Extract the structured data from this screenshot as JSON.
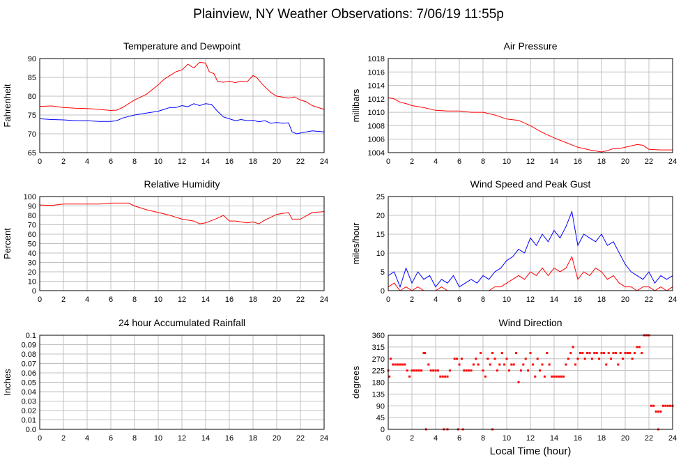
{
  "page_title": "Plainview, NY Weather Observations: 7/06/19 11:55p",
  "bottom_xlabel": "Local Time (hour)",
  "colors": {
    "red": "#ff0000",
    "blue": "#0000ff",
    "grid": "#c0c0c0",
    "axis": "#000000"
  },
  "chart_data": [
    {
      "id": "temp",
      "type": "line",
      "title": "Temperature and Dewpoint",
      "ylabel": "Fahrenheit",
      "xlim": [
        0,
        24
      ],
      "ylim": [
        65,
        90
      ],
      "xticks": [
        0,
        2,
        4,
        6,
        8,
        10,
        12,
        14,
        16,
        18,
        20,
        22,
        24
      ],
      "yticks": [
        65,
        70,
        75,
        80,
        85,
        90
      ],
      "grid": true,
      "series": [
        {
          "color": "#ff0000",
          "x": [
            0,
            1,
            2,
            3,
            4,
            5,
            6,
            6.5,
            7,
            8,
            9,
            10,
            10.5,
            11,
            11.5,
            12,
            12.5,
            13,
            13.5,
            14,
            14.3,
            14.7,
            15,
            15.5,
            16,
            16.5,
            17,
            17.5,
            18,
            18.3,
            18.7,
            19,
            19.5,
            20,
            21,
            21.5,
            22,
            22.5,
            23,
            24
          ],
          "y": [
            77.3,
            77.4,
            77,
            76.8,
            76.7,
            76.5,
            76.2,
            76.3,
            77,
            79,
            80.5,
            83,
            84.5,
            85.5,
            86.5,
            87,
            88.5,
            87.5,
            89,
            88.8,
            86.5,
            86,
            84,
            83.7,
            84,
            83.6,
            84,
            83.8,
            85.5,
            85,
            83.5,
            82.5,
            81,
            80,
            79.5,
            79.8,
            79,
            78.5,
            77.5,
            76.5
          ]
        },
        {
          "color": "#0000ff",
          "x": [
            0,
            1,
            2,
            3,
            4,
            5,
            6,
            6.5,
            7,
            8,
            9,
            10,
            10.5,
            11,
            11.5,
            12,
            12.5,
            13,
            13.5,
            14,
            14.5,
            15,
            15.5,
            16,
            16.5,
            17,
            17.5,
            18,
            18.5,
            19,
            19.5,
            20,
            20.5,
            21,
            21.3,
            21.7,
            22,
            22.5,
            23,
            24
          ],
          "y": [
            74,
            73.8,
            73.7,
            73.5,
            73.5,
            73.3,
            73.3,
            73.5,
            74.2,
            75,
            75.5,
            76,
            76.5,
            77,
            77,
            77.5,
            77.2,
            78,
            77.5,
            78,
            77.8,
            76,
            74.5,
            74,
            73.5,
            73.8,
            73.5,
            73.6,
            73.2,
            73.5,
            72.8,
            73,
            72.8,
            72.9,
            70.5,
            70,
            70.2,
            70.5,
            70.8,
            70.5
          ]
        }
      ]
    },
    {
      "id": "pressure",
      "type": "line",
      "title": "Air Pressure",
      "ylabel": "millibars",
      "xlim": [
        0,
        24
      ],
      "ylim": [
        1004,
        1018
      ],
      "xticks": [
        0,
        2,
        4,
        6,
        8,
        10,
        12,
        14,
        16,
        18,
        20,
        22,
        24
      ],
      "yticks": [
        1004,
        1006,
        1008,
        1010,
        1012,
        1014,
        1016,
        1018
      ],
      "grid": true,
      "series": [
        {
          "color": "#ff0000",
          "x": [
            0,
            0.5,
            1,
            1.5,
            2,
            3,
            4,
            5,
            6,
            7,
            8,
            9,
            10,
            11,
            12,
            13,
            14,
            15,
            16,
            17,
            18,
            18.5,
            19,
            19.5,
            20,
            20.5,
            21,
            21.5,
            22,
            23,
            24
          ],
          "y": [
            1012.2,
            1012,
            1011.5,
            1011.3,
            1011,
            1010.7,
            1010.3,
            1010.2,
            1010.2,
            1010,
            1010,
            1009.6,
            1009,
            1008.8,
            1008,
            1007,
            1006.2,
            1005.5,
            1004.8,
            1004.4,
            1004.1,
            1004.3,
            1004.6,
            1004.6,
            1004.8,
            1005,
            1005.2,
            1005.1,
            1004.5,
            1004.4,
            1004.4
          ]
        }
      ]
    },
    {
      "id": "humidity",
      "type": "line",
      "title": "Relative Humidity",
      "ylabel": "Percent",
      "xlim": [
        0,
        24
      ],
      "ylim": [
        0,
        100
      ],
      "xticks": [
        0,
        2,
        4,
        6,
        8,
        10,
        12,
        14,
        16,
        18,
        20,
        22,
        24
      ],
      "yticks": [
        0,
        10,
        20,
        30,
        40,
        50,
        60,
        70,
        80,
        90,
        100
      ],
      "grid": true,
      "series": [
        {
          "color": "#ff0000",
          "x": [
            0,
            1,
            2,
            3,
            4,
            5,
            6,
            7,
            7.5,
            8,
            9,
            10,
            11,
            12,
            13,
            13.5,
            14,
            15,
            15.5,
            16,
            16.5,
            17,
            17.5,
            18,
            18.5,
            19,
            20,
            21,
            21.3,
            22,
            23,
            24
          ],
          "y": [
            91,
            90.5,
            92,
            92,
            92,
            92,
            93,
            93,
            93,
            90,
            86,
            83,
            80,
            76,
            74,
            71,
            72,
            77,
            80,
            74,
            74,
            73,
            72,
            73,
            71,
            75,
            81,
            83,
            76,
            76,
            83,
            84
          ]
        }
      ]
    },
    {
      "id": "wind",
      "type": "line",
      "title": "Wind Speed and Peak Gust",
      "ylabel": "miles/hour",
      "xlim": [
        0,
        24
      ],
      "ylim": [
        0,
        25
      ],
      "xticks": [
        0,
        2,
        4,
        6,
        8,
        10,
        12,
        14,
        16,
        18,
        20,
        22,
        24
      ],
      "yticks": [
        0,
        5,
        10,
        15,
        20,
        25
      ],
      "grid": true,
      "series": [
        {
          "color": "#0000ff",
          "x": [
            0,
            0.5,
            1,
            1.5,
            2,
            2.5,
            3,
            3.5,
            4,
            4.5,
            5,
            5.5,
            6,
            6.5,
            7,
            7.5,
            8,
            8.5,
            9,
            9.5,
            10,
            10.5,
            11,
            11.5,
            12,
            12.5,
            13,
            13.5,
            14,
            14.5,
            15,
            15.5,
            16,
            16.5,
            17,
            17.5,
            18,
            18.5,
            19,
            19.5,
            20,
            20.5,
            21,
            21.5,
            22,
            22.5,
            23,
            23.5,
            24
          ],
          "y": [
            4,
            5,
            1,
            6,
            2,
            5,
            3,
            4,
            1,
            3,
            2,
            4,
            1,
            2,
            3,
            2,
            4,
            3,
            5,
            6,
            8,
            9,
            11,
            10,
            14,
            12,
            15,
            13,
            16,
            14,
            17,
            21,
            12,
            15,
            14,
            13,
            15,
            12,
            13,
            10,
            7,
            5,
            4,
            3,
            5,
            2,
            4,
            3,
            4
          ]
        },
        {
          "color": "#ff0000",
          "x": [
            0,
            0.5,
            1,
            1.5,
            2,
            2.5,
            3,
            3.5,
            4,
            4.5,
            5,
            5.5,
            6,
            6.5,
            7,
            7.5,
            8,
            8.5,
            9,
            9.5,
            10,
            10.5,
            11,
            11.5,
            12,
            12.5,
            13,
            13.5,
            14,
            14.5,
            15,
            15.5,
            16,
            16.5,
            17,
            17.5,
            18,
            18.5,
            19,
            19.5,
            20,
            20.5,
            21,
            21.5,
            22,
            22.5,
            23,
            23.5,
            24
          ],
          "y": [
            1,
            2,
            0,
            1,
            0,
            1,
            0,
            0,
            0,
            1,
            0,
            0,
            0,
            0,
            0,
            0,
            0,
            0,
            1,
            1,
            2,
            3,
            4,
            3,
            5,
            4,
            6,
            4,
            6,
            5,
            6,
            9,
            3,
            5,
            4,
            6,
            5,
            3,
            4,
            2,
            1,
            1,
            0,
            1,
            1,
            0,
            1,
            0,
            1
          ]
        }
      ]
    },
    {
      "id": "rain",
      "type": "line",
      "title": "24 hour Accumulated Rainfall",
      "ylabel": "Inches",
      "xlim": [
        0,
        24
      ],
      "ylim": [
        0,
        0.1
      ],
      "xticks": [
        0,
        2,
        4,
        6,
        8,
        10,
        12,
        14,
        16,
        18,
        20,
        22,
        24
      ],
      "yticks": [
        0.0,
        0.01,
        0.02,
        0.03,
        0.04,
        0.05,
        0.06,
        0.07,
        0.08,
        0.09,
        0.1
      ],
      "ytick_labels": [
        "0.0",
        "0.01",
        "0.02",
        "0.03",
        "0.04",
        "0.05",
        "0.06",
        "0.07",
        "0.08",
        "0.09",
        "0.1"
      ],
      "grid": true,
      "series": [
        {
          "color": "#ff0000",
          "x": [
            0,
            24
          ],
          "y": [
            0,
            0
          ]
        }
      ]
    },
    {
      "id": "direction",
      "type": "scatter",
      "title": "Wind Direction",
      "ylabel": "degrees",
      "xlabel": "Local Time (hour)",
      "xlim": [
        0,
        24
      ],
      "ylim": [
        0,
        360
      ],
      "xticks": [
        0,
        2,
        4,
        6,
        8,
        10,
        12,
        14,
        16,
        18,
        20,
        22,
        24
      ],
      "yticks": [
        0,
        45,
        90,
        135,
        180,
        225,
        270,
        315,
        360
      ],
      "grid": true,
      "series": [
        {
          "color": "#ff0000",
          "x": [
            0,
            0.1,
            0.2,
            0.4,
            0.6,
            0.8,
            1.0,
            1.2,
            1.4,
            1.6,
            1.8,
            2.0,
            2.2,
            2.4,
            2.6,
            2.8,
            3.0,
            3.1,
            3.2,
            3.4,
            3.6,
            3.8,
            4.0,
            4.2,
            4.4,
            4.6,
            4.8,
            5.0,
            5.2,
            5.6,
            5.8,
            6.0,
            6.2,
            6.4,
            6.6,
            6.8,
            7.0,
            7.2,
            7.4,
            7.6,
            7.8,
            8.0,
            8.2,
            8.4,
            8.6,
            8.8,
            9.0,
            9.2,
            9.4,
            9.6,
            9.8,
            10.0,
            10.2,
            10.4,
            10.6,
            10.8,
            11.0,
            11.2,
            11.4,
            11.6,
            11.8,
            12.0,
            12.2,
            12.4,
            12.6,
            12.8,
            13.0,
            13.2,
            13.4,
            13.6,
            13.8,
            14.0,
            14.2,
            14.4,
            14.6,
            14.8,
            15.0,
            15.2,
            15.4,
            15.6,
            15.8,
            16.0,
            16.2,
            16.4,
            16.6,
            16.8,
            17.0,
            17.2,
            17.4,
            17.6,
            17.8,
            18.0,
            18.2,
            18.4,
            18.6,
            18.8,
            19.0,
            19.2,
            19.4,
            19.6,
            19.8,
            20.0,
            20.2,
            20.4,
            20.6,
            20.8,
            21.0,
            21.2,
            21.4,
            21.6,
            21.8,
            22.0,
            22.2,
            22.4,
            22.6,
            22.8,
            23.0,
            23.2,
            23.4,
            23.6,
            23.8,
            24.0,
            4.7,
            5.0,
            5.9,
            6.3,
            8.8,
            22.8
          ],
          "y": [
            225,
            202,
            270,
            248,
            248,
            248,
            248,
            248,
            248,
            225,
            202,
            225,
            225,
            225,
            225,
            225,
            292,
            292,
            0,
            248,
            225,
            225,
            225,
            225,
            202,
            202,
            202,
            202,
            225,
            270,
            270,
            248,
            270,
            225,
            225,
            225,
            225,
            248,
            270,
            248,
            292,
            225,
            202,
            270,
            248,
            292,
            270,
            225,
            248,
            292,
            248,
            270,
            225,
            248,
            248,
            292,
            180,
            225,
            248,
            270,
            225,
            292,
            248,
            202,
            270,
            225,
            248,
            202,
            292,
            248,
            202,
            202,
            202,
            202,
            202,
            202,
            248,
            270,
            292,
            315,
            248,
            270,
            292,
            292,
            270,
            292,
            292,
            270,
            292,
            292,
            270,
            292,
            292,
            248,
            292,
            270,
            292,
            292,
            248,
            292,
            270,
            292,
            292,
            292,
            270,
            292,
            315,
            315,
            292,
            360,
            360,
            360,
            90,
            90,
            68,
            68,
            68,
            90,
            90,
            90,
            90,
            90,
            0,
            0,
            0,
            0,
            0,
            0
          ]
        }
      ]
    }
  ]
}
